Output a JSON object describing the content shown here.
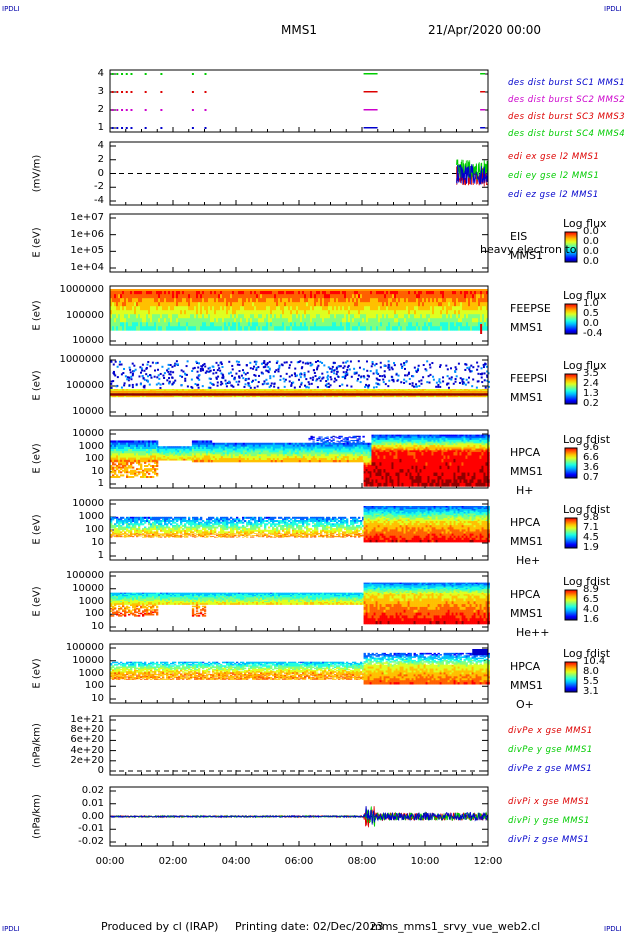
{
  "header": {
    "corner_label": "IPDLI",
    "spacecraft": "MMS1",
    "date": "21/Apr/2020 00:00"
  },
  "footer": {
    "produced_by": "Produced by cl (IRAP)",
    "printing_date": "Printing date: 02/Dec/2023",
    "file": "mms_mms1_srvy_vue_web2.cl"
  },
  "colors": {
    "mms1": "#0000cc",
    "mms2": "#cc00cc",
    "mms3": "#dd0000",
    "mms4": "#00cc00"
  },
  "chart_data": [
    {
      "type": "scatter",
      "name": "burst availability",
      "yticks": [
        "4",
        "3",
        "2",
        "1"
      ],
      "legend": [
        {
          "label": "des dist burst SC1 MMS1",
          "color": "#0000cc"
        },
        {
          "label": "des dist burst SC2 MMS2",
          "color": "#cc00cc"
        },
        {
          "label": "des dist burst SC3 MMS3",
          "color": "#dd0000"
        },
        {
          "label": "des dist burst SC4 MMS4",
          "color": "#00cc00"
        }
      ]
    },
    {
      "type": "line",
      "ylabel": "(mV/m)",
      "yticks": [
        "4",
        "2",
        "0",
        "-2",
        "-4"
      ],
      "legend": [
        {
          "label": "edi ex gse l2 MMS1",
          "color": "#dd0000"
        },
        {
          "label": "edi ey gse l2 MMS1",
          "color": "#00cc00"
        },
        {
          "label": "edi ez gse l2 MMS1",
          "color": "#0000cc"
        }
      ]
    },
    {
      "type": "heatmap",
      "ylabel": "E (eV)",
      "yticks": [
        "1e+07",
        "1e+06",
        "1e+05",
        "1e+04"
      ],
      "instrument": [
        "EIS",
        "MMS1"
      ],
      "overlay": "heavy electron to",
      "cbar_title": "Log flux",
      "cbar_ticks": [
        "0.0",
        "0.0",
        "0.0",
        "0.0"
      ]
    },
    {
      "type": "heatmap",
      "ylabel": "E (eV)",
      "yticks": [
        "1000000",
        "100000",
        "10000"
      ],
      "instrument": [
        "FEEPSE",
        "MMS1"
      ],
      "cbar_title": "Log flux",
      "cbar_ticks": [
        "1.0",
        "0.5",
        "0.0",
        "-0.4"
      ]
    },
    {
      "type": "heatmap",
      "ylabel": "E (eV)",
      "yticks": [
        "1000000",
        "100000",
        "10000"
      ],
      "instrument": [
        "FEEPSI",
        "MMS1"
      ],
      "cbar_title": "Log flux",
      "cbar_ticks": [
        "3.5",
        "2.4",
        "1.3",
        "0.2"
      ]
    },
    {
      "type": "heatmap",
      "ylabel": "E (eV)",
      "yticks": [
        "10000",
        "1000",
        "100",
        "10",
        "1"
      ],
      "instrument": [
        "HPCA",
        "MMS1",
        "H+"
      ],
      "cbar_title": "Log fdist",
      "cbar_ticks": [
        "9.6",
        "6.6",
        "3.6",
        "0.7"
      ]
    },
    {
      "type": "heatmap",
      "ylabel": "E (eV)",
      "yticks": [
        "10000",
        "1000",
        "100",
        "10",
        "1"
      ],
      "instrument": [
        "HPCA",
        "MMS1",
        "He+"
      ],
      "cbar_title": "Log fdist",
      "cbar_ticks": [
        "9.8",
        "7.1",
        "4.5",
        "1.9"
      ]
    },
    {
      "type": "heatmap",
      "ylabel": "E (eV)",
      "yticks": [
        "100000",
        "10000",
        "1000",
        "100",
        "10"
      ],
      "instrument": [
        "HPCA",
        "MMS1",
        "He++"
      ],
      "cbar_title": "Log fdist",
      "cbar_ticks": [
        "8.9",
        "6.5",
        "4.0",
        "1.6"
      ]
    },
    {
      "type": "heatmap",
      "ylabel": "E (eV)",
      "yticks": [
        "100000",
        "10000",
        "1000",
        "100",
        "10"
      ],
      "instrument": [
        "HPCA",
        "MMS1",
        "O+"
      ],
      "cbar_title": "Log fdist",
      "cbar_ticks": [
        "10.4",
        "8.0",
        "5.5",
        "3.1"
      ]
    },
    {
      "type": "line",
      "ylabel": "(nPa/km)",
      "yticks": [
        "1e+21",
        "8e+20",
        "6e+20",
        "4e+20",
        "2e+20",
        "0"
      ],
      "legend": [
        {
          "label": "divPe x gse MMS1",
          "color": "#dd0000"
        },
        {
          "label": "divPe y gse MMS1",
          "color": "#00cc00"
        },
        {
          "label": "divPe z gse MMS1",
          "color": "#0000cc"
        }
      ]
    },
    {
      "type": "line",
      "ylabel": "(nPa/km)",
      "yticks": [
        "0.02",
        "0.01",
        "0.00",
        "-0.01",
        "-0.02"
      ],
      "legend": [
        {
          "label": "divPi x gse MMS1",
          "color": "#dd0000"
        },
        {
          "label": "divPi y gse MMS1",
          "color": "#00cc00"
        },
        {
          "label": "divPi z gse MMS1",
          "color": "#0000cc"
        }
      ]
    }
  ],
  "x_axis": {
    "ticks": [
      "00:00",
      "02:00",
      "04:00",
      "06:00",
      "08:00",
      "10:00",
      "12:00"
    ]
  }
}
